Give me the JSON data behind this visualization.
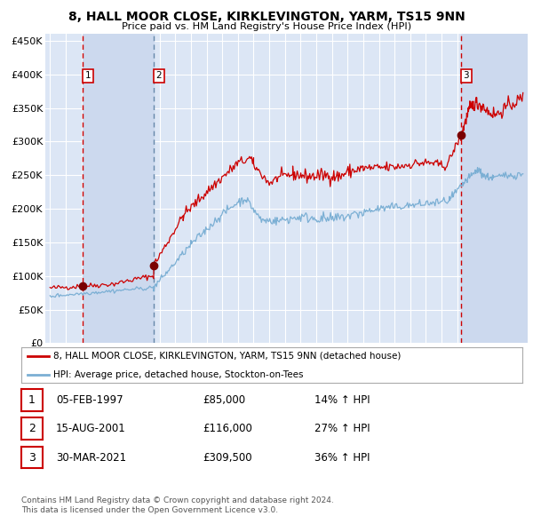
{
  "title": "8, HALL MOOR CLOSE, KIRKLEVINGTON, YARM, TS15 9NN",
  "subtitle": "Price paid vs. HM Land Registry's House Price Index (HPI)",
  "ylim": [
    0,
    460000
  ],
  "yticks": [
    0,
    50000,
    100000,
    150000,
    200000,
    250000,
    300000,
    350000,
    400000,
    450000
  ],
  "ytick_labels": [
    "£0",
    "£50K",
    "£100K",
    "£150K",
    "£200K",
    "£250K",
    "£300K",
    "£350K",
    "£400K",
    "£450K"
  ],
  "xlim_start": 1994.7,
  "xlim_end": 2025.5,
  "background_color": "#ffffff",
  "plot_bg_color": "#dce6f5",
  "grid_color": "#ffffff",
  "red_line_color": "#cc0000",
  "blue_line_color": "#7bafd4",
  "sale_marker_color": "#7a0000",
  "vline_color_solid": "#cc0000",
  "vline_color_dashed": "#6688aa",
  "sale1_x": 1997.09,
  "sale1_y": 85000,
  "sale2_x": 2001.62,
  "sale2_y": 116000,
  "sale3_x": 2021.24,
  "sale3_y": 309500,
  "legend_label_red": "8, HALL MOOR CLOSE, KIRKLEVINGTON, YARM, TS15 9NN (detached house)",
  "legend_label_blue": "HPI: Average price, detached house, Stockton-on-Tees",
  "table_rows": [
    {
      "num": "1",
      "date": "05-FEB-1997",
      "price": "£85,000",
      "hpi": "14% ↑ HPI"
    },
    {
      "num": "2",
      "date": "15-AUG-2001",
      "price": "£116,000",
      "hpi": "27% ↑ HPI"
    },
    {
      "num": "3",
      "date": "30-MAR-2021",
      "price": "£309,500",
      "hpi": "36% ↑ HPI"
    }
  ],
  "footer1": "Contains HM Land Registry data © Crown copyright and database right 2024.",
  "footer2": "This data is licensed under the Open Government Licence v3.0."
}
